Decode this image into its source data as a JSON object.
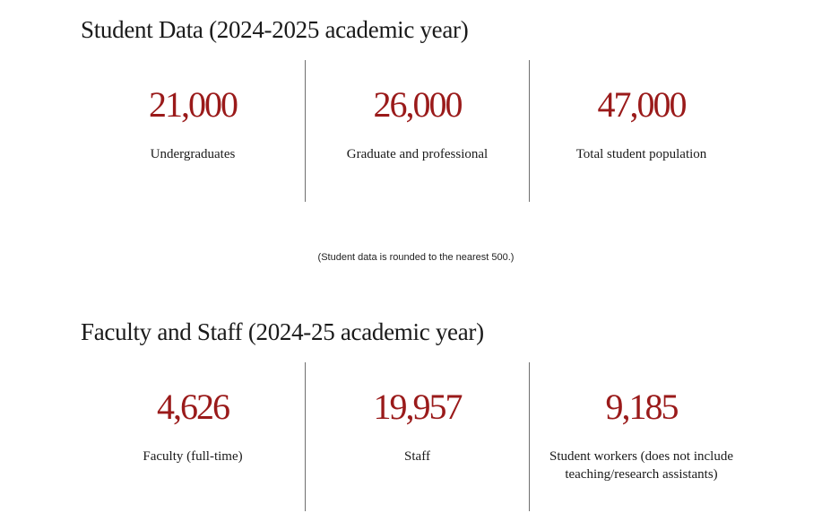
{
  "students": {
    "title": "Student Data (2024-2025 academic year)",
    "stats": [
      {
        "value": "21,000",
        "label": "Undergraduates"
      },
      {
        "value": "26,000",
        "label": "Graduate and professional"
      },
      {
        "value": "47,000",
        "label": "Total student population"
      }
    ],
    "note": "(Student data is rounded to the nearest 500.)"
  },
  "staff": {
    "title": "Faculty and Staff (2024-25 academic year)",
    "stats": [
      {
        "value": "4,626",
        "label": "Faculty (full-time)"
      },
      {
        "value": "19,957",
        "label": "Staff"
      },
      {
        "value": "9,185",
        "label": "Student workers (does not include teaching/research assistants)"
      }
    ]
  },
  "colors": {
    "accent": "#9a1a1a",
    "divider": "#6f6f6f",
    "text": "#1a1a1a"
  }
}
